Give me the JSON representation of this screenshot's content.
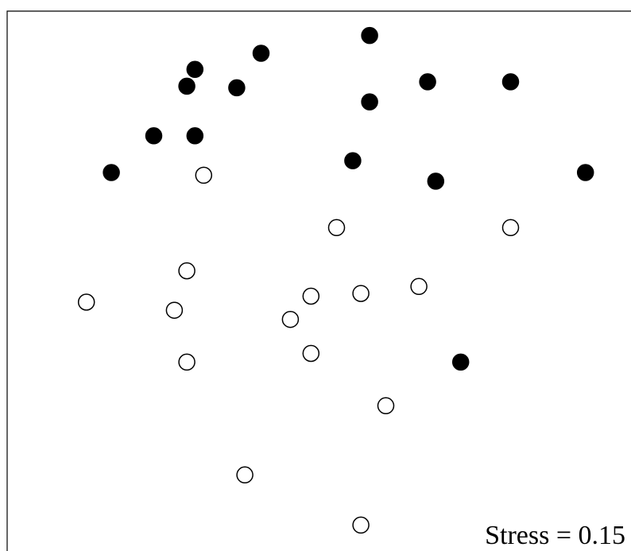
{
  "chart_data": {
    "type": "scatter",
    "title": "",
    "xlabel": "",
    "ylabel": "",
    "xlim": [
      0,
      100
    ],
    "ylim": [
      0,
      100
    ],
    "grid": false,
    "axes": "box-left-top",
    "annotation": "Stress = 0.15",
    "series": [
      {
        "marker": "filled-circle",
        "color": "#000000",
        "points": [
          [
            58.1,
            95.5
          ],
          [
            40.7,
            92.2
          ],
          [
            30.1,
            89.2
          ],
          [
            28.8,
            86.1
          ],
          [
            36.8,
            85.8
          ],
          [
            67.4,
            86.9
          ],
          [
            80.7,
            86.9
          ],
          [
            58.1,
            83.2
          ],
          [
            23.5,
            76.9
          ],
          [
            30.1,
            76.9
          ],
          [
            55.4,
            72.3
          ],
          [
            16.7,
            70.1
          ],
          [
            68.7,
            68.5
          ],
          [
            92.7,
            70.1
          ],
          [
            72.7,
            35.0
          ]
        ]
      },
      {
        "marker": "open-circle",
        "color": "#000000",
        "points": [
          [
            31.5,
            69.6
          ],
          [
            52.8,
            59.9
          ],
          [
            80.7,
            59.9
          ],
          [
            28.8,
            51.9
          ],
          [
            12.7,
            46.1
          ],
          [
            26.8,
            44.6
          ],
          [
            48.7,
            47.2
          ],
          [
            56.7,
            47.7
          ],
          [
            66.0,
            49.0
          ],
          [
            45.4,
            42.9
          ],
          [
            48.7,
            36.6
          ],
          [
            28.8,
            35.0
          ],
          [
            60.7,
            26.9
          ],
          [
            38.1,
            14.1
          ],
          [
            56.7,
            4.8
          ]
        ]
      }
    ]
  }
}
